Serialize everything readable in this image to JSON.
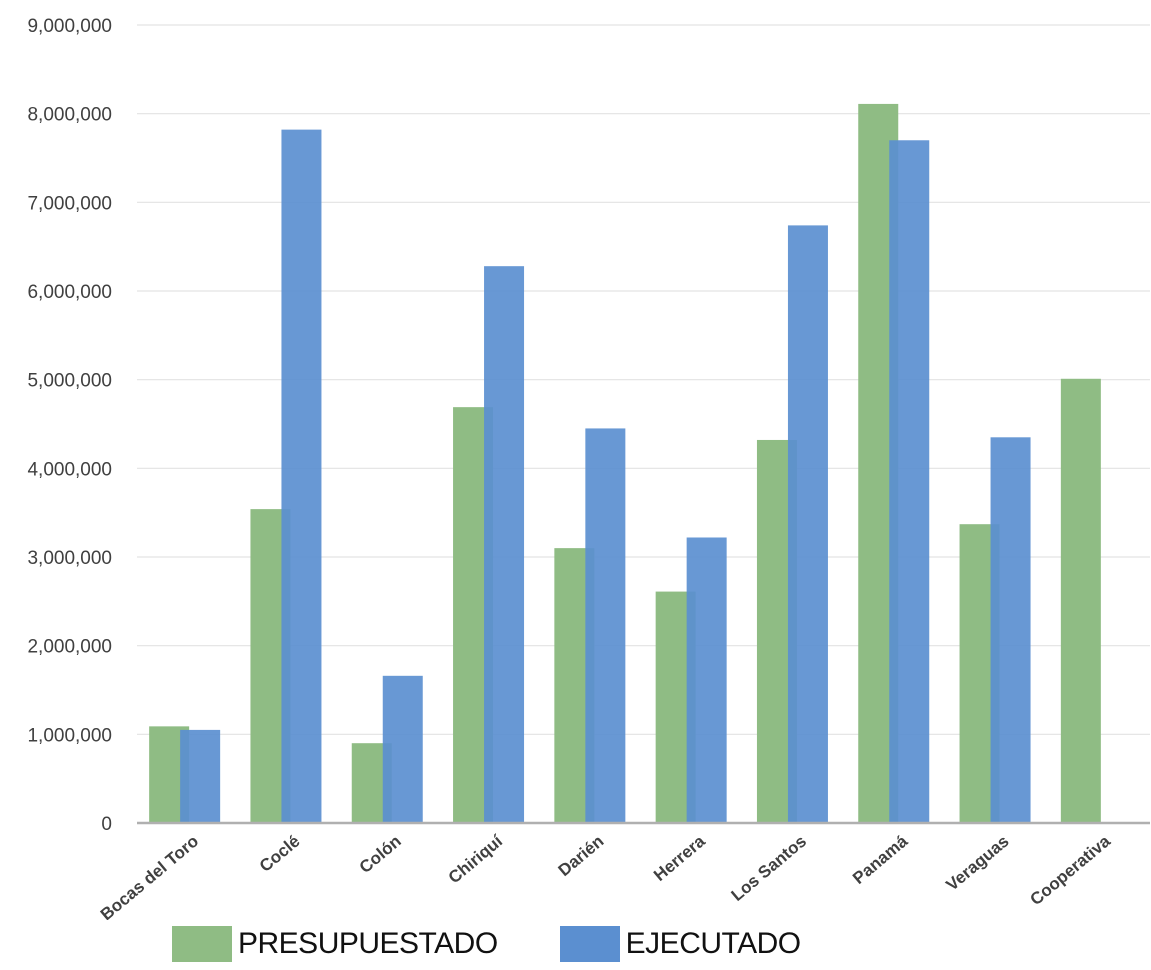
{
  "chart_data": {
    "type": "bar",
    "title": "",
    "xlabel": "",
    "ylabel": "",
    "ylim": [
      0,
      9000000
    ],
    "yticks": [
      0,
      1000000,
      2000000,
      3000000,
      4000000,
      5000000,
      6000000,
      7000000,
      8000000,
      9000000
    ],
    "ytick_labels": [
      "0",
      "1,000,000",
      "2,000,000",
      "3,000,000",
      "4,000,000",
      "5,000,000",
      "6,000,000",
      "7,000,000",
      "8,000,000",
      "9,000,000"
    ],
    "grid": true,
    "legend_position": "bottom",
    "categories": [
      "Bocas del Toro",
      "Coclé",
      "Colón",
      "Chiriquí",
      "Darién",
      "Herrera",
      "Los Santos",
      "Panamá",
      "Veraguas",
      "Cooperativa"
    ],
    "series": [
      {
        "name": "PRESUPUESTADO",
        "color": "#8fbc84",
        "values": [
          1090000,
          3540000,
          900000,
          4690000,
          3100000,
          2610000,
          4320000,
          8110000,
          3370000,
          5010000
        ]
      },
      {
        "name": "EJECUTADO",
        "color": "#5b8fd0",
        "values": [
          1050000,
          7820000,
          1660000,
          6280000,
          4450000,
          3220000,
          6740000,
          7700000,
          4350000,
          0
        ]
      }
    ]
  }
}
